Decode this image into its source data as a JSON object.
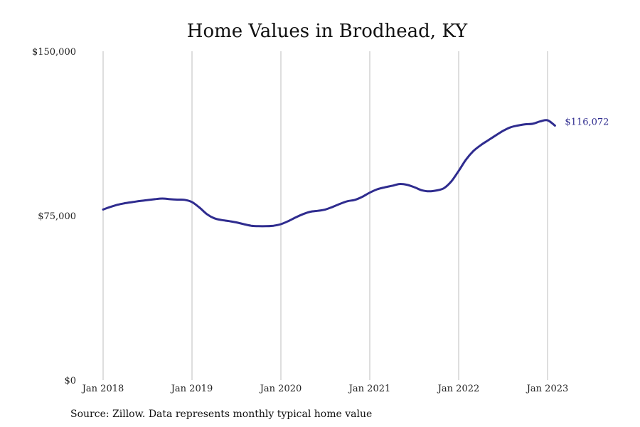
{
  "chart_data": {
    "type": "line",
    "title": "Home Values in Brodhead, KY",
    "source": "Source: Zillow. Data represents monthly typical home value",
    "ylim": [
      0,
      150000
    ],
    "y_ticks": [
      {
        "value": 0,
        "label": "$0"
      },
      {
        "value": 75000,
        "label": "$75,000"
      },
      {
        "value": 150000,
        "label": "$150,000"
      }
    ],
    "x_ticks": [
      {
        "value": "2018-01",
        "label": "Jan 2018"
      },
      {
        "value": "2019-01",
        "label": "Jan 2019"
      },
      {
        "value": "2020-01",
        "label": "Jan 2020"
      },
      {
        "value": "2021-01",
        "label": "Jan 2021"
      },
      {
        "value": "2022-01",
        "label": "Jan 2022"
      },
      {
        "value": "2023-01",
        "label": "Jan 2023"
      }
    ],
    "grid": "vertical",
    "line_color": "#2f2c8f",
    "end_label": "$116,072",
    "series": [
      {
        "x": [
          "2018-01",
          "2018-02",
          "2018-03",
          "2018-04",
          "2018-05",
          "2018-06",
          "2018-07",
          "2018-08",
          "2018-09",
          "2018-10",
          "2018-11",
          "2018-12",
          "2019-01",
          "2019-02",
          "2019-03",
          "2019-04",
          "2019-05",
          "2019-06",
          "2019-07",
          "2019-08",
          "2019-09",
          "2019-10",
          "2019-11",
          "2019-12",
          "2020-01",
          "2020-02",
          "2020-03",
          "2020-04",
          "2020-05",
          "2020-06",
          "2020-07",
          "2020-08",
          "2020-09",
          "2020-10",
          "2020-11",
          "2020-12",
          "2021-01",
          "2021-02",
          "2021-03",
          "2021-04",
          "2021-05",
          "2021-06",
          "2021-07",
          "2021-08",
          "2021-09",
          "2021-10",
          "2021-11",
          "2021-12",
          "2022-01",
          "2022-02",
          "2022-03",
          "2022-04",
          "2022-05",
          "2022-06",
          "2022-07",
          "2022-08",
          "2022-09",
          "2022-10",
          "2022-11",
          "2022-12",
          "2023-01",
          "2023-02"
        ],
        "values": [
          77800,
          79000,
          80000,
          80700,
          81200,
          81700,
          82100,
          82500,
          82800,
          82500,
          82300,
          82200,
          81200,
          78700,
          75700,
          73800,
          73000,
          72500,
          71900,
          71100,
          70400,
          70200,
          70200,
          70400,
          71100,
          72500,
          74200,
          75700,
          76800,
          77200,
          77800,
          79000,
          80400,
          81600,
          82200,
          83600,
          85500,
          87000,
          87900,
          88600,
          89400,
          89100,
          88000,
          86600,
          86100,
          86500,
          87500,
          90600,
          95400,
          100600,
          104500,
          107200,
          109400,
          111600,
          113700,
          115300,
          116100,
          116700,
          116900,
          118000,
          118500,
          116072
        ]
      }
    ]
  }
}
